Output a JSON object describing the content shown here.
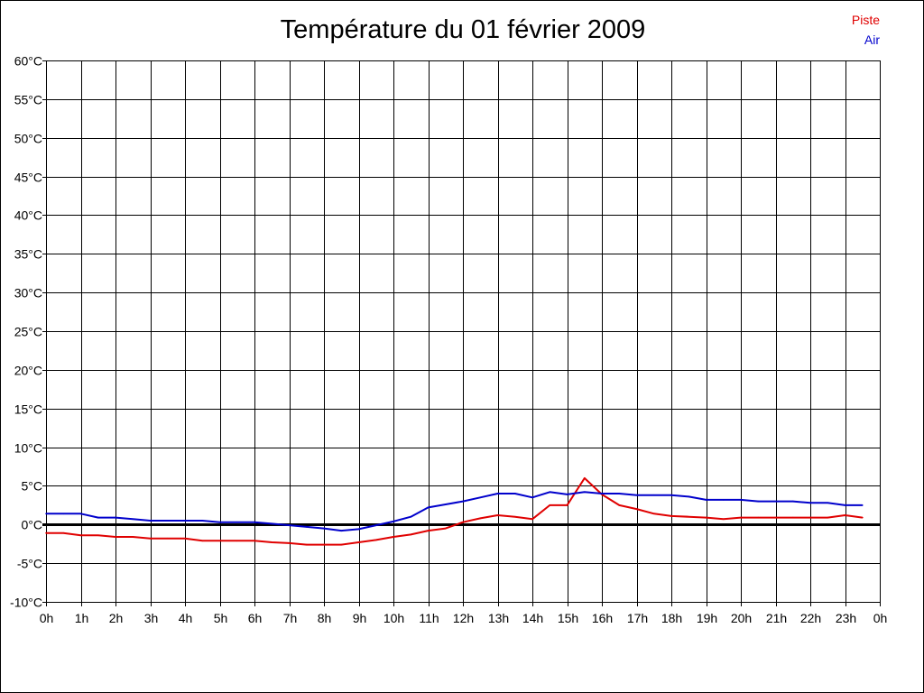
{
  "chart_data": {
    "type": "line",
    "title": "Température du 01 février 2009",
    "xlabel": "",
    "ylabel": "",
    "x_tick_labels": [
      "0h",
      "1h",
      "2h",
      "3h",
      "4h",
      "5h",
      "6h",
      "7h",
      "8h",
      "9h",
      "10h",
      "11h",
      "12h",
      "13h",
      "14h",
      "15h",
      "16h",
      "17h",
      "18h",
      "19h",
      "20h",
      "21h",
      "22h",
      "23h",
      "0h"
    ],
    "y_tick_labels": [
      "60°C",
      "55°C",
      "50°C",
      "45°C",
      "40°C",
      "35°C",
      "30°C",
      "25°C",
      "20°C",
      "15°C",
      "10°C",
      "5°C",
      "0°C",
      "-5°C",
      "-10°C"
    ],
    "ylim": [
      -10,
      60
    ],
    "xlim": [
      0,
      24
    ],
    "grid": true,
    "legend_position": "top-right",
    "series": [
      {
        "name": "Piste",
        "color": "#e00000",
        "points": [
          [
            0,
            -1.1
          ],
          [
            0.5,
            -1.1
          ],
          [
            1,
            -1.4
          ],
          [
            1.5,
            -1.4
          ],
          [
            2,
            -1.6
          ],
          [
            2.5,
            -1.6
          ],
          [
            3,
            -1.8
          ],
          [
            3.5,
            -1.8
          ],
          [
            4,
            -1.8
          ],
          [
            4.5,
            -2.1
          ],
          [
            5,
            -2.1
          ],
          [
            5.5,
            -2.1
          ],
          [
            6,
            -2.1
          ],
          [
            6.5,
            -2.3
          ],
          [
            7,
            -2.4
          ],
          [
            7.5,
            -2.6
          ],
          [
            8,
            -2.6
          ],
          [
            8.5,
            -2.6
          ],
          [
            9,
            -2.3
          ],
          [
            9.5,
            -2.0
          ],
          [
            10,
            -1.6
          ],
          [
            10.5,
            -1.3
          ],
          [
            11,
            -0.8
          ],
          [
            11.5,
            -0.5
          ],
          [
            12,
            0.3
          ],
          [
            12.5,
            0.8
          ],
          [
            13,
            1.2
          ],
          [
            13.5,
            1.0
          ],
          [
            14,
            0.7
          ],
          [
            14.5,
            2.5
          ],
          [
            15,
            2.5
          ],
          [
            15.5,
            6.0
          ],
          [
            16,
            3.9
          ],
          [
            16.5,
            2.5
          ],
          [
            17,
            2.0
          ],
          [
            17.5,
            1.4
          ],
          [
            18,
            1.1
          ],
          [
            18.5,
            1.0
          ],
          [
            19,
            0.9
          ],
          [
            19.5,
            0.7
          ],
          [
            20,
            0.9
          ],
          [
            20.5,
            0.9
          ],
          [
            21,
            0.9
          ],
          [
            21.5,
            0.9
          ],
          [
            22,
            0.9
          ],
          [
            22.5,
            0.9
          ],
          [
            23,
            1.2
          ],
          [
            23.5,
            0.9
          ]
        ]
      },
      {
        "name": "Air",
        "color": "#0000cc",
        "points": [
          [
            0,
            1.4
          ],
          [
            0.5,
            1.4
          ],
          [
            1,
            1.4
          ],
          [
            1.5,
            0.9
          ],
          [
            2,
            0.9
          ],
          [
            2.5,
            0.7
          ],
          [
            3,
            0.5
          ],
          [
            3.5,
            0.5
          ],
          [
            4,
            0.5
          ],
          [
            4.5,
            0.5
          ],
          [
            5,
            0.3
          ],
          [
            5.5,
            0.3
          ],
          [
            6,
            0.3
          ],
          [
            6.5,
            0.1
          ],
          [
            7,
            -0.1
          ],
          [
            7.5,
            -0.3
          ],
          [
            8,
            -0.5
          ],
          [
            8.5,
            -0.8
          ],
          [
            9,
            -0.6
          ],
          [
            9.5,
            -0.1
          ],
          [
            10,
            0.4
          ],
          [
            10.5,
            1.0
          ],
          [
            11,
            2.2
          ],
          [
            11.5,
            2.6
          ],
          [
            12,
            3.0
          ],
          [
            12.5,
            3.5
          ],
          [
            13,
            4.0
          ],
          [
            13.5,
            4.0
          ],
          [
            14,
            3.5
          ],
          [
            14.5,
            4.2
          ],
          [
            15,
            3.9
          ],
          [
            15.5,
            4.2
          ],
          [
            16,
            4.0
          ],
          [
            16.5,
            4.0
          ],
          [
            17,
            3.8
          ],
          [
            17.5,
            3.8
          ],
          [
            18,
            3.8
          ],
          [
            18.5,
            3.6
          ],
          [
            19,
            3.2
          ],
          [
            19.5,
            3.2
          ],
          [
            20,
            3.2
          ],
          [
            20.5,
            3.0
          ],
          [
            21,
            3.0
          ],
          [
            21.5,
            3.0
          ],
          [
            22,
            2.8
          ],
          [
            22.5,
            2.8
          ],
          [
            23,
            2.5
          ],
          [
            23.5,
            2.5
          ]
        ]
      }
    ]
  }
}
